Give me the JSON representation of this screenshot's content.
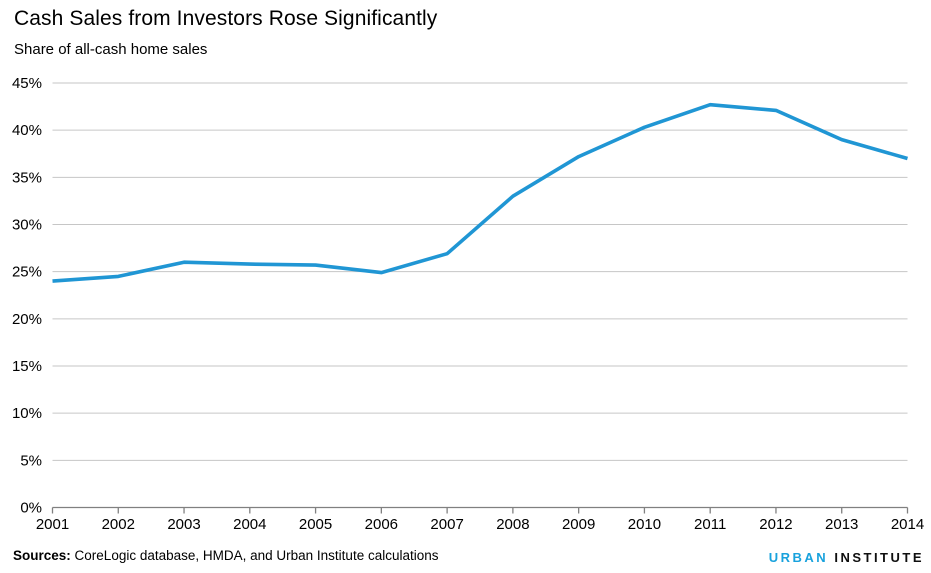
{
  "header": {
    "title": "Cash Sales from Investors Rose Significantly",
    "subtitle": "Share of all-cash home sales"
  },
  "footer": {
    "sources_label": "Sources:",
    "sources_text": "CoreLogic database, HMDA, and Urban Institute calculations",
    "logo_urban": "URBAN",
    "logo_institute": "INSTITUTE"
  },
  "colors": {
    "line": "#2096d4",
    "gridline": "#c6c6c6",
    "axis": "#808080",
    "tick_text": "#000000",
    "logo_blue": "#18a2dd"
  },
  "chart_data": {
    "type": "line",
    "title": "Cash Sales from Investors Rose Significantly",
    "subtitle": "Share of all-cash home sales",
    "x": [
      2001,
      2002,
      2003,
      2004,
      2005,
      2006,
      2007,
      2008,
      2009,
      2010,
      2011,
      2012,
      2013,
      2014
    ],
    "values": [
      24.0,
      24.5,
      26.0,
      25.8,
      25.7,
      24.9,
      26.9,
      33.0,
      37.2,
      40.3,
      42.7,
      42.1,
      39.0,
      37.0
    ],
    "series_name": "Share of all-cash home sales",
    "ylim": [
      0,
      45
    ],
    "ytick_step": 5,
    "ytick_labels": [
      "0%",
      "5%",
      "10%",
      "15%",
      "20%",
      "25%",
      "30%",
      "35%",
      "40%",
      "45%"
    ],
    "grid": "horizontal",
    "legend": "none"
  }
}
